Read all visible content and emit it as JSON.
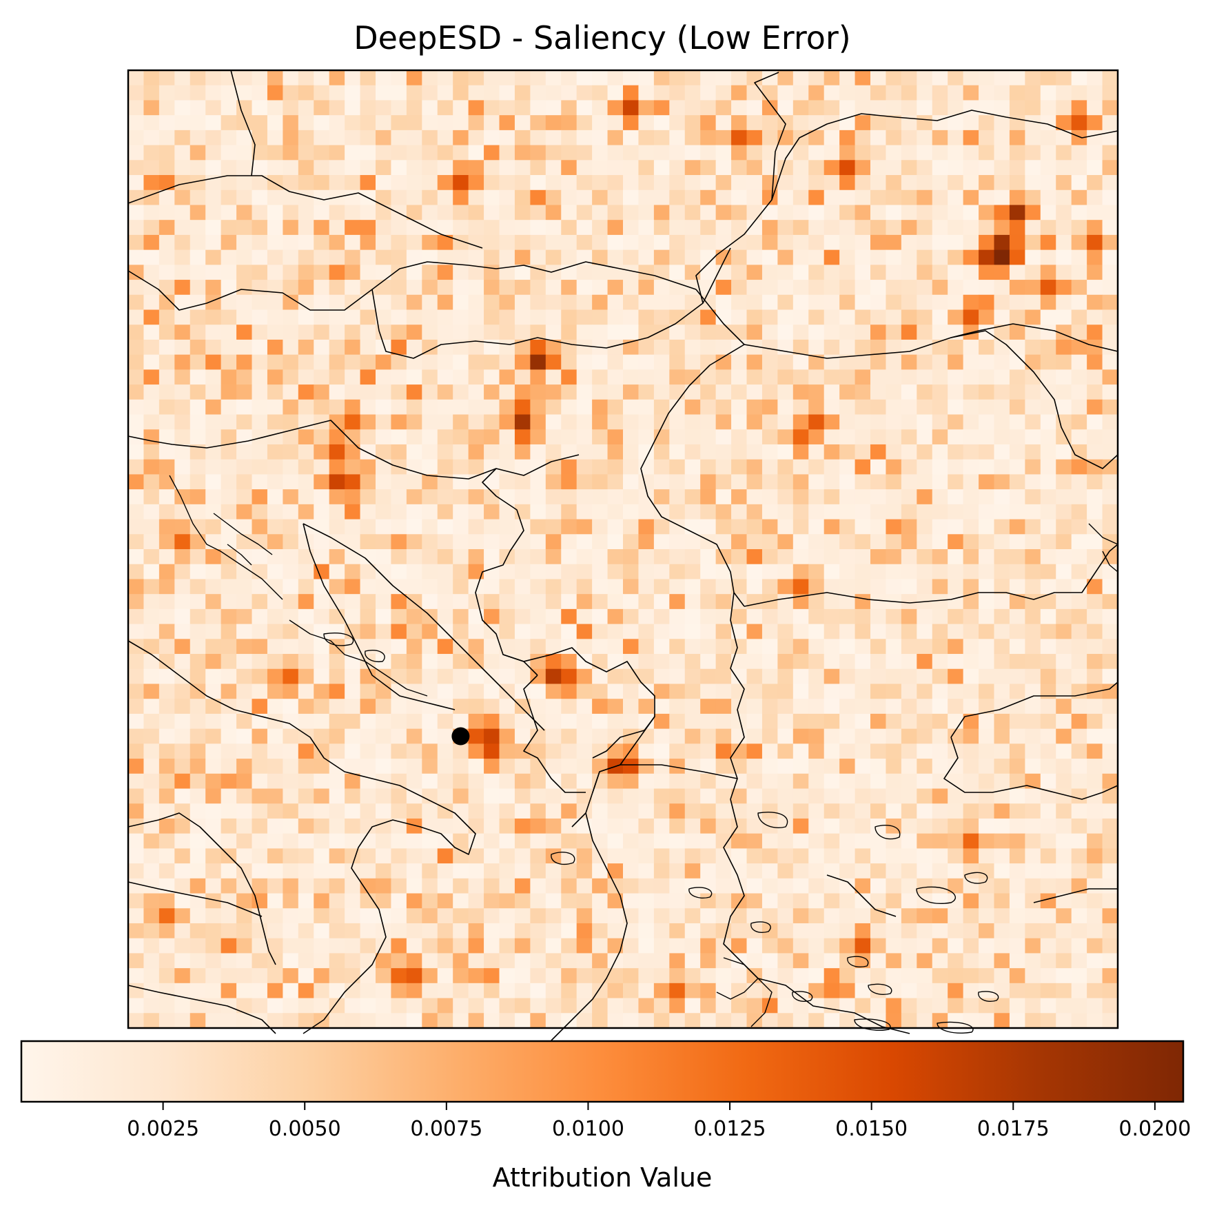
{
  "chart_data": {
    "type": "heatmap",
    "title": "DeepESD - Saliency (Low Error)",
    "colorbar": {
      "label": "Attribution Value",
      "range": [
        0.0,
        0.0205
      ],
      "ticks": [
        0.0025,
        0.005,
        0.0075,
        0.01,
        0.0125,
        0.015,
        0.0175,
        0.02
      ],
      "tick_labels": [
        "0.0025",
        "0.0050",
        "0.0075",
        "0.0100",
        "0.0125",
        "0.0150",
        "0.0175",
        "0.0200"
      ],
      "colormap": "Oranges",
      "stops": [
        "#fff5eb",
        "#fee6ce",
        "#fdd0a2",
        "#fdae6b",
        "#fd8d3c",
        "#f16913",
        "#d94801",
        "#a63603",
        "#7f2704"
      ]
    },
    "grid": {
      "rows": 64,
      "cols": 64,
      "background_mean": 0.0032
    },
    "hotspots": [
      {
        "row": 12,
        "col": 56,
        "value": 0.0205
      },
      {
        "row": 11,
        "col": 56,
        "value": 0.0185
      },
      {
        "row": 9,
        "col": 57,
        "value": 0.0185
      },
      {
        "row": 12,
        "col": 55,
        "value": 0.017
      },
      {
        "row": 19,
        "col": 26,
        "value": 0.019
      },
      {
        "row": 23,
        "col": 25,
        "value": 0.018
      },
      {
        "row": 22,
        "col": 25,
        "value": 0.013
      },
      {
        "row": 2,
        "col": 32,
        "value": 0.016
      },
      {
        "row": 7,
        "col": 21,
        "value": 0.015
      },
      {
        "row": 6,
        "col": 46,
        "value": 0.015
      },
      {
        "row": 4,
        "col": 39,
        "value": 0.014
      },
      {
        "row": 3,
        "col": 61,
        "value": 0.014
      },
      {
        "row": 11,
        "col": 62,
        "value": 0.014
      },
      {
        "row": 14,
        "col": 59,
        "value": 0.014
      },
      {
        "row": 16,
        "col": 54,
        "value": 0.014
      },
      {
        "row": 27,
        "col": 13,
        "value": 0.016
      },
      {
        "row": 27,
        "col": 14,
        "value": 0.014
      },
      {
        "row": 25,
        "col": 13,
        "value": 0.014
      },
      {
        "row": 23,
        "col": 14,
        "value": 0.013
      },
      {
        "row": 40,
        "col": 27,
        "value": 0.017
      },
      {
        "row": 40,
        "col": 28,
        "value": 0.014
      },
      {
        "row": 44,
        "col": 23,
        "value": 0.016
      },
      {
        "row": 45,
        "col": 23,
        "value": 0.015
      },
      {
        "row": 44,
        "col": 22,
        "value": 0.014
      },
      {
        "row": 46,
        "col": 31,
        "value": 0.016
      },
      {
        "row": 46,
        "col": 32,
        "value": 0.015
      },
      {
        "row": 40,
        "col": 10,
        "value": 0.013
      },
      {
        "row": 23,
        "col": 44,
        "value": 0.014
      },
      {
        "row": 24,
        "col": 43,
        "value": 0.013
      },
      {
        "row": 34,
        "col": 43,
        "value": 0.013
      },
      {
        "row": 58,
        "col": 47,
        "value": 0.014
      },
      {
        "row": 60,
        "col": 18,
        "value": 0.014
      },
      {
        "row": 60,
        "col": 17,
        "value": 0.013
      },
      {
        "row": 61,
        "col": 35,
        "value": 0.013
      },
      {
        "row": 51,
        "col": 54,
        "value": 0.013
      },
      {
        "row": 31,
        "col": 3,
        "value": 0.013
      },
      {
        "row": 56,
        "col": 2,
        "value": 0.0125
      }
    ],
    "marker": {
      "row": 44,
      "col": 21,
      "color": "#000000"
    }
  }
}
